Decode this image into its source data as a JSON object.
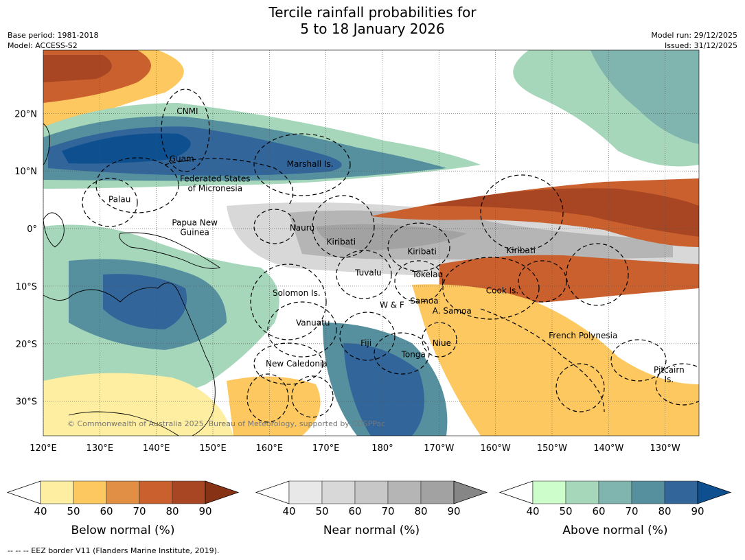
{
  "title": {
    "line1": "Tercile rainfall probabilities for",
    "line2": "5 to 18 January 2026"
  },
  "meta": {
    "base_period": "Base period: 1981-2018",
    "model": "Model: ACCESS-S2",
    "model_run": "Model run: 29/12/2025",
    "issued": "Issued: 31/12/2025"
  },
  "map": {
    "extent": {
      "lon_min": 120,
      "lon_max": 236,
      "lat_min": -36,
      "lat_max": 31
    },
    "lon_ticks": [
      {
        "lon": 120,
        "label": "120°E"
      },
      {
        "lon": 130,
        "label": "130°E"
      },
      {
        "lon": 140,
        "label": "140°E"
      },
      {
        "lon": 150,
        "label": "150°E"
      },
      {
        "lon": 160,
        "label": "160°E"
      },
      {
        "lon": 170,
        "label": "170°E"
      },
      {
        "lon": 180,
        "label": "180°"
      },
      {
        "lon": 190,
        "label": "170°W"
      },
      {
        "lon": 200,
        "label": "160°W"
      },
      {
        "lon": 210,
        "label": "150°W"
      },
      {
        "lon": 220,
        "label": "140°W"
      },
      {
        "lon": 230,
        "label": "130°W"
      }
    ],
    "lat_ticks": [
      {
        "lat": 20,
        "label": "20°N"
      },
      {
        "lat": 10,
        "label": "10°N"
      },
      {
        "lat": 0,
        "label": "0°"
      },
      {
        "lat": -10,
        "label": "10°S"
      },
      {
        "lat": -20,
        "label": "20°S"
      },
      {
        "lat": -30,
        "label": "30°S"
      }
    ],
    "places": [
      {
        "lines": [
          "CNMI"
        ],
        "lon": 145.5,
        "lat": 20.4
      },
      {
        "lines": [
          "Guam"
        ],
        "lon": 144.5,
        "lat": 12.1
      },
      {
        "lines": [
          "Marshall Is."
        ],
        "lon": 167.2,
        "lat": 11.2
      },
      {
        "lines": [
          "Federated States",
          "of Micronesia"
        ],
        "lon": 150.4,
        "lat": 7.8
      },
      {
        "lines": [
          "Palau"
        ],
        "lon": 133.5,
        "lat": 5.1
      },
      {
        "lines": [
          "Papua New",
          "Guinea"
        ],
        "lon": 146.8,
        "lat": 0.2
      },
      {
        "lines": [
          "Nauru"
        ],
        "lon": 165.8,
        "lat": 0.1
      },
      {
        "lines": [
          "Kiribati"
        ],
        "lon": 172.7,
        "lat": -2.3
      },
      {
        "lines": [
          "Kiribati"
        ],
        "lon": 187,
        "lat": -4
      },
      {
        "lines": [
          "Kiribati"
        ],
        "lon": 204.5,
        "lat": -3.8
      },
      {
        "lines": [
          "Tuvalu"
        ],
        "lon": 177.5,
        "lat": -7.7
      },
      {
        "lines": [
          "Tokelau"
        ],
        "lon": 188,
        "lat": -8
      },
      {
        "lines": [
          "Cook Is."
        ],
        "lon": 201.2,
        "lat": -10.8
      },
      {
        "lines": [
          "Solomon Is."
        ],
        "lon": 164.8,
        "lat": -11.2
      },
      {
        "lines": [
          "W & F"
        ],
        "lon": 181.7,
        "lat": -13.3
      },
      {
        "lines": [
          "Samoa"
        ],
        "lon": 187.4,
        "lat": -12.6
      },
      {
        "lines": [
          "A. Samoa"
        ],
        "lon": 192.3,
        "lat": -14.3
      },
      {
        "lines": [
          "Vanuatu"
        ],
        "lon": 167.7,
        "lat": -16.4
      },
      {
        "lines": [
          "Fiji"
        ],
        "lon": 177.1,
        "lat": -19.9
      },
      {
        "lines": [
          "Niue"
        ],
        "lon": 190.5,
        "lat": -19.9
      },
      {
        "lines": [
          "French Polynesia"
        ],
        "lon": 215.5,
        "lat": -18.6
      },
      {
        "lines": [
          "Tonga"
        ],
        "lon": 185.5,
        "lat": -21.9
      },
      {
        "lines": [
          "New Caledonia"
        ],
        "lon": 164.8,
        "lat": -23.5
      },
      {
        "lines": [
          "Pitcairn",
          "Is."
        ],
        "lon": 230.7,
        "lat": -25.4
      }
    ],
    "copyright": "© Commonwealth of Australia 2025, Bureau of Meteorology, supported by COSPPac"
  },
  "colorbars": [
    {
      "name": "below-normal",
      "label": "Below normal (%)",
      "ticks": [
        "40",
        "50",
        "60",
        "70",
        "80",
        "90"
      ],
      "colors": [
        "#ffffff",
        "#feeea1",
        "#fdc85f",
        "#e08f44",
        "#c9602e",
        "#a84522",
        "#873215"
      ]
    },
    {
      "name": "near-normal",
      "label": "Near normal (%)",
      "ticks": [
        "40",
        "50",
        "60",
        "70",
        "80",
        "90"
      ],
      "colors": [
        "#ffffff",
        "#e8e8e8",
        "#d8d8d8",
        "#c7c7c7",
        "#b5b5b5",
        "#a2a2a2",
        "#868686"
      ]
    },
    {
      "name": "above-normal",
      "label": "Above normal (%)",
      "ticks": [
        "40",
        "50",
        "60",
        "70",
        "80",
        "90"
      ],
      "colors": [
        "#ffffff",
        "#ccfdcb",
        "#a6d7bb",
        "#7fb5ae",
        "#56909f",
        "#32659a",
        "#0d4f8f"
      ]
    }
  ],
  "footnote": "--  --  -- EEZ border V11 (Flanders Marine Institute, 2019)."
}
